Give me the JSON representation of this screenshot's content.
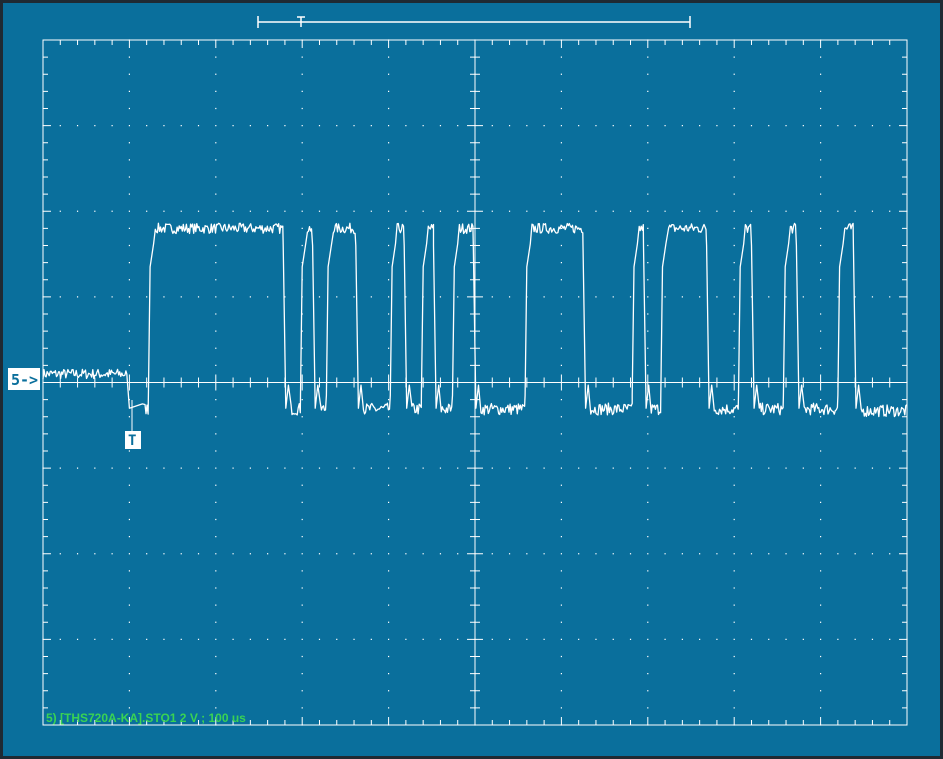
{
  "colors": {
    "background": "#0a6f9c",
    "grid": "#ffffff",
    "trace": "#ffffff",
    "status_text": "#39d353",
    "frame": "#1f2a33"
  },
  "channel_marker": "5->",
  "trigger_marker": "T",
  "status_line": "5) [THS720A-KA].STO1  2  V  ;  100 us",
  "chart_data": {
    "type": "line",
    "title": "",
    "xlabel": "",
    "ylabel": "",
    "grid": true,
    "divisions": {
      "x": 10,
      "y": 8
    },
    "volts_per_div": 2,
    "time_per_div_us": 100,
    "xlim_div": [
      0,
      10
    ],
    "ylim_div": [
      -4,
      4
    ],
    "ground_div": 0,
    "trigger_time_div": 1.0,
    "low_level_div": -0.25,
    "high_level_div": 1.8,
    "pretrigger_level_div": 0.1,
    "series": [
      {
        "segments_high_div": [
          [
            1.22,
            2.78
          ],
          [
            2.98,
            3.12
          ],
          [
            3.28,
            3.62
          ],
          [
            4.02,
            4.18
          ],
          [
            4.38,
            4.52
          ],
          [
            4.74,
            4.98
          ],
          [
            5.58,
            6.25
          ],
          [
            6.82,
            6.95
          ],
          [
            7.15,
            7.68
          ],
          [
            8.05,
            8.2
          ],
          [
            8.57,
            8.72
          ],
          [
            9.2,
            9.38
          ]
        ]
      }
    ]
  }
}
